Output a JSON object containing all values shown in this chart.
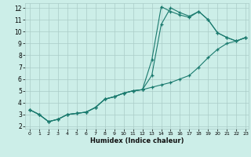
{
  "xlabel": "Humidex (Indice chaleur)",
  "bg_color": "#cceee8",
  "grid_color": "#aaccc8",
  "line_color": "#1a7a6e",
  "xlim": [
    -0.5,
    23.3
  ],
  "ylim": [
    1.8,
    12.4
  ],
  "xticks": [
    0,
    1,
    2,
    3,
    4,
    5,
    6,
    7,
    8,
    9,
    10,
    11,
    12,
    13,
    14,
    15,
    16,
    17,
    18,
    19,
    20,
    21,
    22,
    23
  ],
  "yticks": [
    2,
    3,
    4,
    5,
    6,
    7,
    8,
    9,
    10,
    11,
    12
  ],
  "line1_x": [
    0,
    1,
    2,
    3,
    4,
    5,
    6,
    7,
    8,
    9,
    10,
    11,
    12,
    13,
    14,
    15,
    16,
    17,
    18,
    19,
    20,
    21,
    22,
    23
  ],
  "line1_y": [
    3.4,
    3.0,
    2.4,
    2.6,
    3.0,
    3.1,
    3.2,
    3.6,
    4.3,
    4.5,
    4.8,
    5.0,
    5.1,
    5.3,
    5.5,
    5.7,
    6.0,
    6.3,
    7.0,
    7.8,
    8.5,
    9.0,
    9.2,
    9.5
  ],
  "line2_x": [
    0,
    1,
    2,
    3,
    4,
    5,
    6,
    7,
    8,
    9,
    10,
    11,
    12,
    13,
    14,
    15,
    16,
    17,
    18,
    19,
    20,
    21,
    22,
    23
  ],
  "line2_y": [
    3.4,
    3.0,
    2.4,
    2.6,
    3.0,
    3.1,
    3.2,
    3.6,
    4.3,
    4.5,
    4.8,
    5.0,
    5.1,
    6.3,
    10.6,
    12.0,
    11.6,
    11.3,
    11.7,
    11.0,
    9.9,
    9.5,
    9.2,
    9.5
  ],
  "line3_x": [
    0,
    1,
    2,
    3,
    4,
    5,
    6,
    7,
    8,
    9,
    10,
    11,
    12,
    13,
    14,
    15,
    16,
    17,
    18,
    19,
    20,
    21,
    22,
    23
  ],
  "line3_y": [
    3.4,
    3.0,
    2.4,
    2.6,
    3.0,
    3.1,
    3.2,
    3.6,
    4.3,
    4.5,
    4.8,
    5.0,
    5.1,
    7.6,
    12.1,
    11.7,
    11.4,
    11.2,
    11.7,
    11.0,
    9.9,
    9.5,
    9.2,
    9.5
  ]
}
